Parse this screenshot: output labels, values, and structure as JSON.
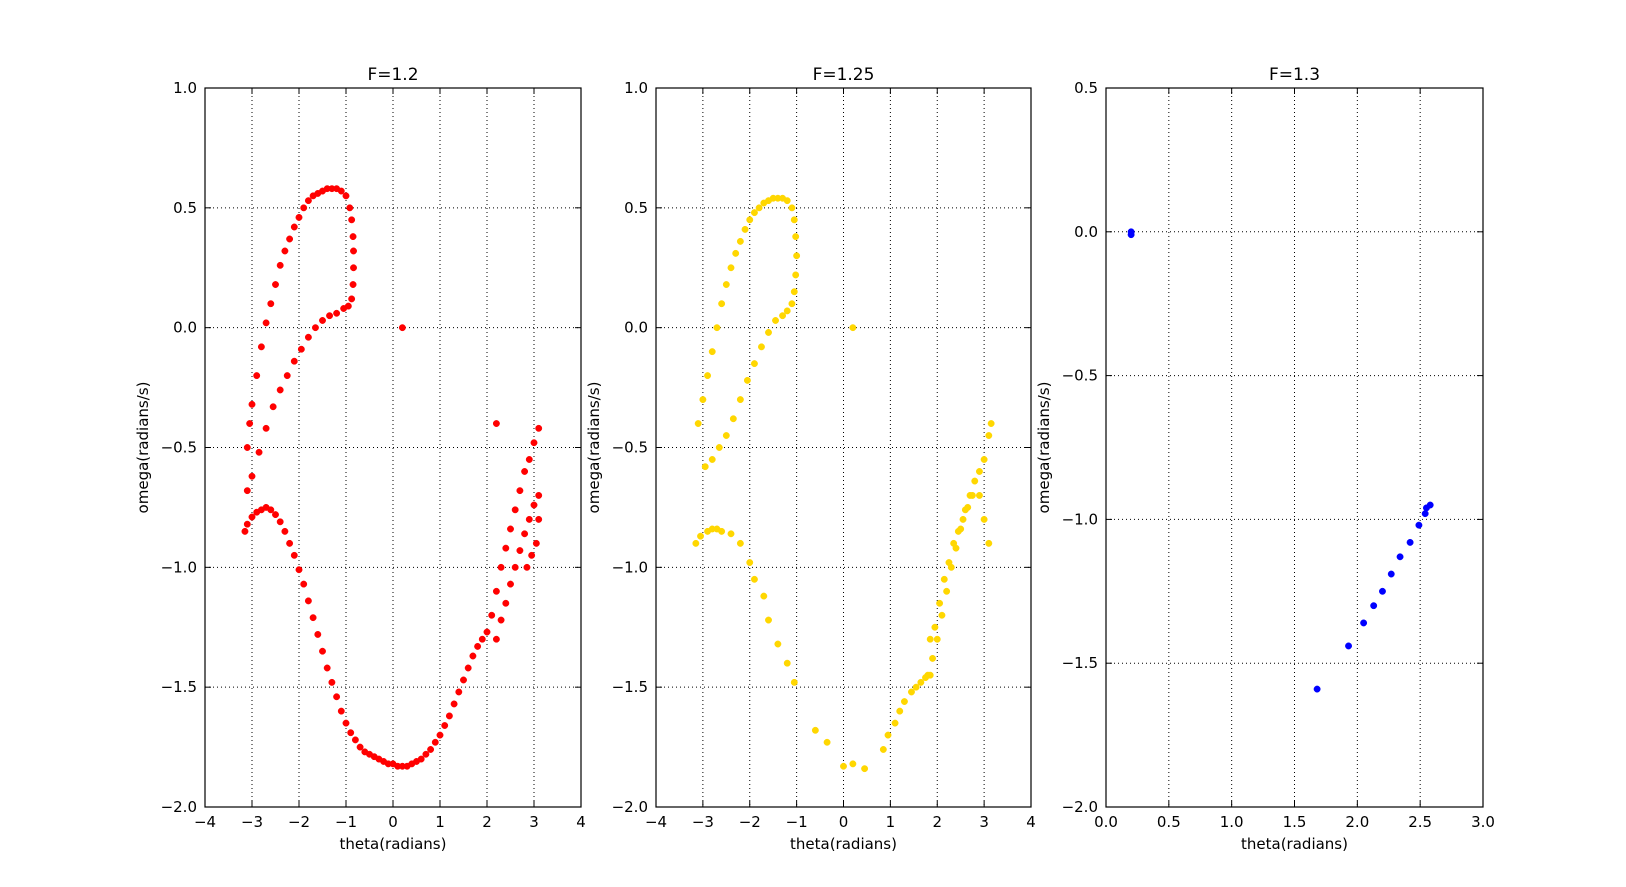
{
  "chart_data": [
    {
      "type": "scatter",
      "title": "F=1.2",
      "xlabel": "theta(radians)",
      "ylabel": "omega(radians/s)",
      "xlim": [
        -4,
        4
      ],
      "ylim": [
        -2.0,
        1.0
      ],
      "xticks": [
        -4,
        -3,
        -2,
        -1,
        0,
        1,
        2,
        3,
        4
      ],
      "xtick_labels": [
        "−4",
        "−3",
        "−2",
        "−1",
        "0",
        "1",
        "2",
        "3",
        "4"
      ],
      "yticks": [
        -2.0,
        -1.5,
        -1.0,
        -0.5,
        0.0,
        0.5,
        1.0
      ],
      "ytick_labels": [
        "−2.0",
        "−1.5",
        "−1.0",
        "−0.5",
        "0.0",
        "0.5",
        "1.0"
      ],
      "grid": true,
      "color": "#ff0000",
      "points": [
        [
          -3.1,
          -0.5
        ],
        [
          -3.05,
          -0.4
        ],
        [
          -3.0,
          -0.32
        ],
        [
          -2.9,
          -0.2
        ],
        [
          -2.8,
          -0.08
        ],
        [
          -2.7,
          0.02
        ],
        [
          -2.6,
          0.1
        ],
        [
          -2.5,
          0.18
        ],
        [
          -2.4,
          0.26
        ],
        [
          -2.3,
          0.32
        ],
        [
          -2.2,
          0.37
        ],
        [
          -2.1,
          0.42
        ],
        [
          -2.0,
          0.46
        ],
        [
          -1.9,
          0.5
        ],
        [
          -1.8,
          0.53
        ],
        [
          -1.7,
          0.55
        ],
        [
          -1.6,
          0.56
        ],
        [
          -1.5,
          0.57
        ],
        [
          -1.4,
          0.58
        ],
        [
          -1.3,
          0.58
        ],
        [
          -1.2,
          0.58
        ],
        [
          -1.1,
          0.57
        ],
        [
          -1.0,
          0.55
        ],
        [
          -0.92,
          0.5
        ],
        [
          -0.88,
          0.45
        ],
        [
          -0.85,
          0.38
        ],
        [
          -0.84,
          0.32
        ],
        [
          -0.84,
          0.25
        ],
        [
          -0.85,
          0.18
        ],
        [
          -0.88,
          0.12
        ],
        [
          -0.95,
          0.09
        ],
        [
          -1.05,
          0.08
        ],
        [
          -1.2,
          0.06
        ],
        [
          -1.35,
          0.05
        ],
        [
          -1.5,
          0.03
        ],
        [
          -1.65,
          0.0
        ],
        [
          -1.8,
          -0.04
        ],
        [
          -1.95,
          -0.09
        ],
        [
          -2.1,
          -0.14
        ],
        [
          -2.25,
          -0.2
        ],
        [
          -2.4,
          -0.26
        ],
        [
          -2.55,
          -0.33
        ],
        [
          -2.7,
          -0.42
        ],
        [
          -2.85,
          -0.52
        ],
        [
          -3.0,
          -0.62
        ],
        [
          -3.1,
          -0.68
        ],
        [
          -3.15,
          -0.85
        ],
        [
          -3.1,
          -0.82
        ],
        [
          -3.0,
          -0.79
        ],
        [
          -2.9,
          -0.77
        ],
        [
          -2.8,
          -0.76
        ],
        [
          -2.7,
          -0.75
        ],
        [
          -2.6,
          -0.76
        ],
        [
          -2.5,
          -0.78
        ],
        [
          -2.4,
          -0.81
        ],
        [
          -2.3,
          -0.85
        ],
        [
          -2.2,
          -0.9
        ],
        [
          -2.1,
          -0.95
        ],
        [
          -2.0,
          -1.01
        ],
        [
          -1.9,
          -1.07
        ],
        [
          -1.8,
          -1.14
        ],
        [
          -1.7,
          -1.21
        ],
        [
          -1.6,
          -1.28
        ],
        [
          -1.5,
          -1.35
        ],
        [
          -1.4,
          -1.42
        ],
        [
          -1.3,
          -1.48
        ],
        [
          -1.2,
          -1.54
        ],
        [
          -1.1,
          -1.6
        ],
        [
          -1.0,
          -1.65
        ],
        [
          -0.9,
          -1.69
        ],
        [
          -0.8,
          -1.72
        ],
        [
          -0.7,
          -1.75
        ],
        [
          -0.6,
          -1.77
        ],
        [
          -0.5,
          -1.78
        ],
        [
          -0.4,
          -1.79
        ],
        [
          -0.3,
          -1.8
        ],
        [
          -0.2,
          -1.81
        ],
        [
          -0.1,
          -1.82
        ],
        [
          0.0,
          -1.82
        ],
        [
          0.1,
          -1.83
        ],
        [
          0.2,
          -1.83
        ],
        [
          0.3,
          -1.83
        ],
        [
          0.4,
          -1.82
        ],
        [
          0.5,
          -1.81
        ],
        [
          0.6,
          -1.8
        ],
        [
          0.7,
          -1.78
        ],
        [
          0.8,
          -1.76
        ],
        [
          0.9,
          -1.73
        ],
        [
          1.0,
          -1.7
        ],
        [
          1.1,
          -1.66
        ],
        [
          1.2,
          -1.62
        ],
        [
          1.3,
          -1.57
        ],
        [
          1.4,
          -1.52
        ],
        [
          1.5,
          -1.47
        ],
        [
          1.6,
          -1.42
        ],
        [
          1.7,
          -1.37
        ],
        [
          1.8,
          -1.33
        ],
        [
          1.9,
          -1.3
        ],
        [
          2.0,
          -1.27
        ],
        [
          2.1,
          -1.2
        ],
        [
          2.2,
          -1.1
        ],
        [
          2.3,
          -1.0
        ],
        [
          2.4,
          -0.92
        ],
        [
          2.5,
          -0.84
        ],
        [
          2.6,
          -0.76
        ],
        [
          2.7,
          -0.68
        ],
        [
          2.8,
          -0.6
        ],
        [
          2.9,
          -0.55
        ],
        [
          3.0,
          -0.48
        ],
        [
          3.1,
          -0.42
        ],
        [
          2.2,
          -1.3
        ],
        [
          2.3,
          -1.22
        ],
        [
          2.4,
          -1.15
        ],
        [
          2.5,
          -1.07
        ],
        [
          2.6,
          -1.0
        ],
        [
          2.7,
          -0.93
        ],
        [
          2.8,
          -0.86
        ],
        [
          2.9,
          -0.8
        ],
        [
          3.0,
          -0.74
        ],
        [
          3.1,
          -0.7
        ],
        [
          3.1,
          -0.8
        ],
        [
          3.05,
          -0.9
        ],
        [
          2.95,
          -0.95
        ],
        [
          2.85,
          -1.0
        ],
        [
          2.2,
          -0.4
        ],
        [
          0.2,
          -0.0
        ]
      ]
    },
    {
      "type": "scatter",
      "title": "F=1.25",
      "xlabel": "theta(radians)",
      "ylabel": "omega(radians/s)",
      "xlim": [
        -4,
        4
      ],
      "ylim": [
        -2.0,
        1.0
      ],
      "xticks": [
        -4,
        -3,
        -2,
        -1,
        0,
        1,
        2,
        3,
        4
      ],
      "xtick_labels": [
        "−4",
        "−3",
        "−2",
        "−1",
        "0",
        "1",
        "2",
        "3",
        "4"
      ],
      "yticks": [
        -2.0,
        -1.5,
        -1.0,
        -0.5,
        0.0,
        0.5,
        1.0
      ],
      "ytick_labels": [
        "−2.0",
        "−1.5",
        "−1.0",
        "−0.5",
        "0.0",
        "0.5",
        "1.0"
      ],
      "grid": true,
      "color": "#ffd700",
      "points": [
        [
          -3.1,
          -0.4
        ],
        [
          -3.0,
          -0.3
        ],
        [
          -2.9,
          -0.2
        ],
        [
          -2.8,
          -0.1
        ],
        [
          -2.7,
          0.0
        ],
        [
          -2.6,
          0.1
        ],
        [
          -2.5,
          0.18
        ],
        [
          -2.4,
          0.25
        ],
        [
          -2.3,
          0.31
        ],
        [
          -2.2,
          0.36
        ],
        [
          -2.1,
          0.41
        ],
        [
          -2.0,
          0.45
        ],
        [
          -1.9,
          0.48
        ],
        [
          -1.8,
          0.5
        ],
        [
          -1.7,
          0.52
        ],
        [
          -1.6,
          0.53
        ],
        [
          -1.5,
          0.54
        ],
        [
          -1.4,
          0.54
        ],
        [
          -1.3,
          0.54
        ],
        [
          -1.2,
          0.53
        ],
        [
          -1.1,
          0.5
        ],
        [
          -1.05,
          0.45
        ],
        [
          -1.02,
          0.38
        ],
        [
          -1.0,
          0.3
        ],
        [
          -1.02,
          0.22
        ],
        [
          -1.05,
          0.15
        ],
        [
          -1.1,
          0.1
        ],
        [
          -1.2,
          0.07
        ],
        [
          -1.3,
          0.05
        ],
        [
          -1.45,
          0.03
        ],
        [
          -1.6,
          -0.02
        ],
        [
          -1.75,
          -0.08
        ],
        [
          -1.9,
          -0.15
        ],
        [
          -2.05,
          -0.22
        ],
        [
          -2.2,
          -0.3
        ],
        [
          -2.35,
          -0.38
        ],
        [
          -2.5,
          -0.45
        ],
        [
          -2.65,
          -0.5
        ],
        [
          -2.8,
          -0.55
        ],
        [
          -2.95,
          -0.58
        ],
        [
          -3.15,
          -0.9
        ],
        [
          -3.05,
          -0.87
        ],
        [
          -2.9,
          -0.85
        ],
        [
          -2.8,
          -0.84
        ],
        [
          -2.7,
          -0.84
        ],
        [
          -2.6,
          -0.85
        ],
        [
          -2.4,
          -0.86
        ],
        [
          -2.2,
          -0.9
        ],
        [
          -2.0,
          -0.98
        ],
        [
          -1.9,
          -1.05
        ],
        [
          -1.7,
          -1.12
        ],
        [
          -1.6,
          -1.22
        ],
        [
          -1.4,
          -1.32
        ],
        [
          -1.2,
          -1.4
        ],
        [
          -1.05,
          -1.48
        ],
        [
          -0.6,
          -1.68
        ],
        [
          -0.35,
          -1.73
        ],
        [
          0.0,
          -1.83
        ],
        [
          0.2,
          -1.82
        ],
        [
          0.45,
          -1.84
        ],
        [
          0.85,
          -1.76
        ],
        [
          0.95,
          -1.7
        ],
        [
          1.1,
          -1.65
        ],
        [
          1.2,
          -1.6
        ],
        [
          1.3,
          -1.56
        ],
        [
          1.45,
          -1.52
        ],
        [
          1.55,
          -1.5
        ],
        [
          1.65,
          -1.48
        ],
        [
          1.75,
          -1.46
        ],
        [
          1.85,
          -1.45
        ],
        [
          0.2,
          0.0
        ],
        [
          1.8,
          -1.45
        ],
        [
          1.9,
          -1.38
        ],
        [
          2.0,
          -1.3
        ],
        [
          2.1,
          -1.2
        ],
        [
          2.2,
          -1.1
        ],
        [
          2.3,
          -1.0
        ],
        [
          2.4,
          -0.92
        ],
        [
          2.5,
          -0.84
        ],
        [
          2.6,
          -0.76
        ],
        [
          2.7,
          -0.7
        ],
        [
          2.8,
          -0.64
        ],
        [
          2.9,
          -0.6
        ],
        [
          3.0,
          -0.55
        ],
        [
          3.1,
          -0.45
        ],
        [
          3.15,
          -0.4
        ],
        [
          1.85,
          -1.3
        ],
        [
          1.95,
          -1.25
        ],
        [
          2.05,
          -1.15
        ],
        [
          2.15,
          -1.05
        ],
        [
          2.25,
          -0.98
        ],
        [
          2.35,
          -0.9
        ],
        [
          2.45,
          -0.85
        ],
        [
          2.55,
          -0.8
        ],
        [
          2.65,
          -0.75
        ],
        [
          2.75,
          -0.7
        ],
        [
          2.9,
          -0.7
        ],
        [
          3.0,
          -0.8
        ],
        [
          3.1,
          -0.9
        ]
      ]
    },
    {
      "type": "scatter",
      "title": "F=1.3",
      "xlabel": "theta(radians)",
      "ylabel": "omega(radians/s)",
      "xlim": [
        0.0,
        3.0
      ],
      "ylim": [
        -2.0,
        0.5
      ],
      "xticks": [
        0.0,
        0.5,
        1.0,
        1.5,
        2.0,
        2.5,
        3.0
      ],
      "xtick_labels": [
        "0.0",
        "0.5",
        "1.0",
        "1.5",
        "2.0",
        "2.5",
        "3.0"
      ],
      "yticks": [
        -2.0,
        -1.5,
        -1.0,
        -0.5,
        0.0,
        0.5
      ],
      "ytick_labels": [
        "−2.0",
        "−1.5",
        "−1.0",
        "−0.5",
        "0.0",
        "0.5"
      ],
      "grid": true,
      "color": "#0000ff",
      "points": [
        [
          0.2,
          0.0
        ],
        [
          0.2,
          -0.01
        ],
        [
          1.68,
          -1.59
        ],
        [
          1.93,
          -1.44
        ],
        [
          2.05,
          -1.36
        ],
        [
          2.13,
          -1.3
        ],
        [
          2.2,
          -1.25
        ],
        [
          2.27,
          -1.19
        ],
        [
          2.34,
          -1.13
        ],
        [
          2.42,
          -1.08
        ],
        [
          2.49,
          -1.02
        ],
        [
          2.54,
          -0.98
        ],
        [
          2.55,
          -0.96
        ],
        [
          2.58,
          -0.95
        ]
      ]
    }
  ]
}
